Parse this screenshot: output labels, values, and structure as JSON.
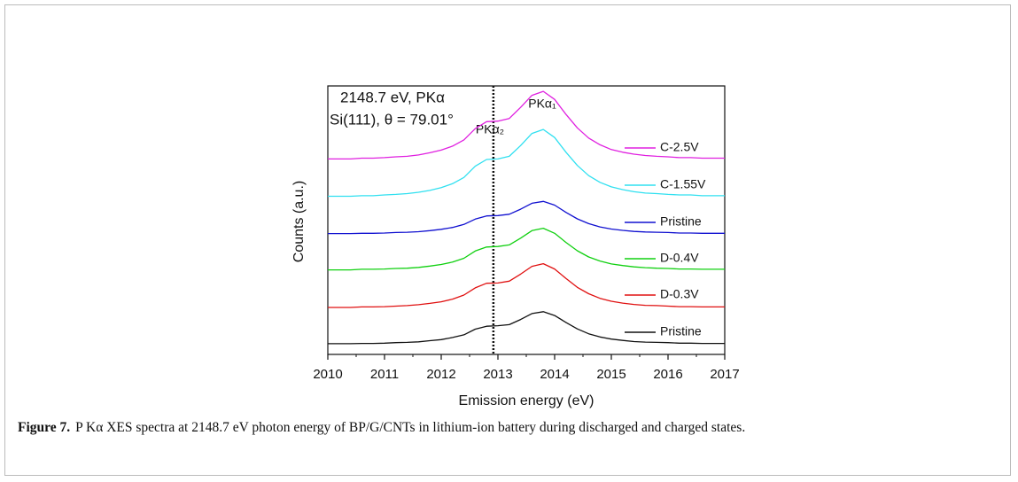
{
  "chart_data": {
    "type": "line",
    "annotations": [
      "2148.7 eV, PKα",
      "Si(111), θ = 79.01°",
      "PKα₁",
      "PKα₂"
    ],
    "xlabel": "Emission energy (eV)",
    "ylabel": "Counts (a.u.)",
    "xlim": [
      2010,
      2017
    ],
    "xticks": [
      2010,
      2011,
      2012,
      2013,
      2014,
      2015,
      2016,
      2017
    ],
    "ylim": [
      0,
      100
    ],
    "vline": 2012.92,
    "x": [
      2010,
      2010.2,
      2010.4,
      2010.6,
      2010.8,
      2011,
      2011.2,
      2011.4,
      2011.6,
      2011.8,
      2012,
      2012.2,
      2012.4,
      2012.6,
      2012.8,
      2013,
      2013.2,
      2013.4,
      2013.6,
      2013.8,
      2014,
      2014.2,
      2014.4,
      2014.6,
      2014.8,
      2015,
      2015.2,
      2015.4,
      2015.6,
      2015.8,
      2016,
      2016.2,
      2016.4,
      2016.6,
      2016.8,
      2017
    ],
    "series": [
      {
        "name": "C-2.5V",
        "color": "#e020e0",
        "values": [
          72.8,
          72.8,
          72.8,
          73.1,
          73.1,
          73.3,
          73.6,
          73.8,
          74.3,
          75.1,
          76.1,
          77.6,
          79.9,
          84.1,
          86.7,
          86.9,
          87.9,
          92.0,
          96.5,
          98.0,
          95.0,
          89.4,
          84.4,
          80.6,
          78.1,
          76.3,
          75.3,
          74.6,
          74.1,
          73.8,
          73.6,
          73.3,
          73.3,
          73.1,
          73.1,
          73.1
        ]
      },
      {
        "name": "C-1.55V",
        "color": "#30e0f0",
        "values": [
          58.9,
          58.9,
          58.9,
          59.1,
          59.1,
          59.4,
          59.6,
          59.9,
          60.4,
          61.1,
          62.1,
          63.6,
          65.9,
          70.1,
          72.6,
          72.8,
          73.8,
          77.8,
          82.3,
          83.8,
          80.8,
          75.3,
          70.4,
          66.6,
          64.1,
          62.4,
          61.4,
          60.6,
          60.1,
          59.9,
          59.6,
          59.4,
          59.4,
          59.1,
          59.1,
          59.1
        ]
      },
      {
        "name": "Pristine",
        "color": "#1010d0",
        "values": [
          45.0,
          45.0,
          45.0,
          45.1,
          45.1,
          45.2,
          45.4,
          45.5,
          45.7,
          46.1,
          46.6,
          47.3,
          48.4,
          50.4,
          51.6,
          51.7,
          52.2,
          54.1,
          56.3,
          57.0,
          55.6,
          52.9,
          50.5,
          48.7,
          47.5,
          46.7,
          46.2,
          45.8,
          45.6,
          45.5,
          45.4,
          45.2,
          45.2,
          45.1,
          45.1,
          45.1
        ]
      },
      {
        "name": "D-0.4V",
        "color": "#10d010",
        "values": [
          31.5,
          31.5,
          31.5,
          31.7,
          31.7,
          31.8,
          32.0,
          32.1,
          32.4,
          32.9,
          33.5,
          34.4,
          35.8,
          38.5,
          40.0,
          40.2,
          40.8,
          43.3,
          46.1,
          47.0,
          45.1,
          41.7,
          38.6,
          36.3,
          34.8,
          33.7,
          33.1,
          32.6,
          32.3,
          32.1,
          32.0,
          31.8,
          31.8,
          31.7,
          31.7,
          31.7
        ]
      },
      {
        "name": "D-0.3V",
        "color": "#e01010",
        "values": [
          17.5,
          17.5,
          17.5,
          17.7,
          17.7,
          17.8,
          18.0,
          18.2,
          18.5,
          19.0,
          19.6,
          20.6,
          22.1,
          24.8,
          26.5,
          26.6,
          27.3,
          29.9,
          32.8,
          33.8,
          31.8,
          28.3,
          25.0,
          22.6,
          20.9,
          19.8,
          19.1,
          18.6,
          18.3,
          18.2,
          18.0,
          17.8,
          17.8,
          17.7,
          17.7,
          17.7
        ]
      },
      {
        "name": "Pristine",
        "color": "#111111",
        "values": [
          4.0,
          4.0,
          4.0,
          4.1,
          4.1,
          4.2,
          4.4,
          4.5,
          4.7,
          5.1,
          5.5,
          6.3,
          7.3,
          9.4,
          10.5,
          10.7,
          11.1,
          13.0,
          15.2,
          15.9,
          14.5,
          11.9,
          9.5,
          7.7,
          6.5,
          5.7,
          5.2,
          4.8,
          4.6,
          4.5,
          4.4,
          4.2,
          4.2,
          4.1,
          4.1,
          4.1
        ]
      }
    ]
  },
  "caption_label": "Figure 7.",
  "caption": "P Kα XES spectra at 2148.7 eV photon energy of BP/G/CNTs in lithium-ion battery during discharged and charged states."
}
